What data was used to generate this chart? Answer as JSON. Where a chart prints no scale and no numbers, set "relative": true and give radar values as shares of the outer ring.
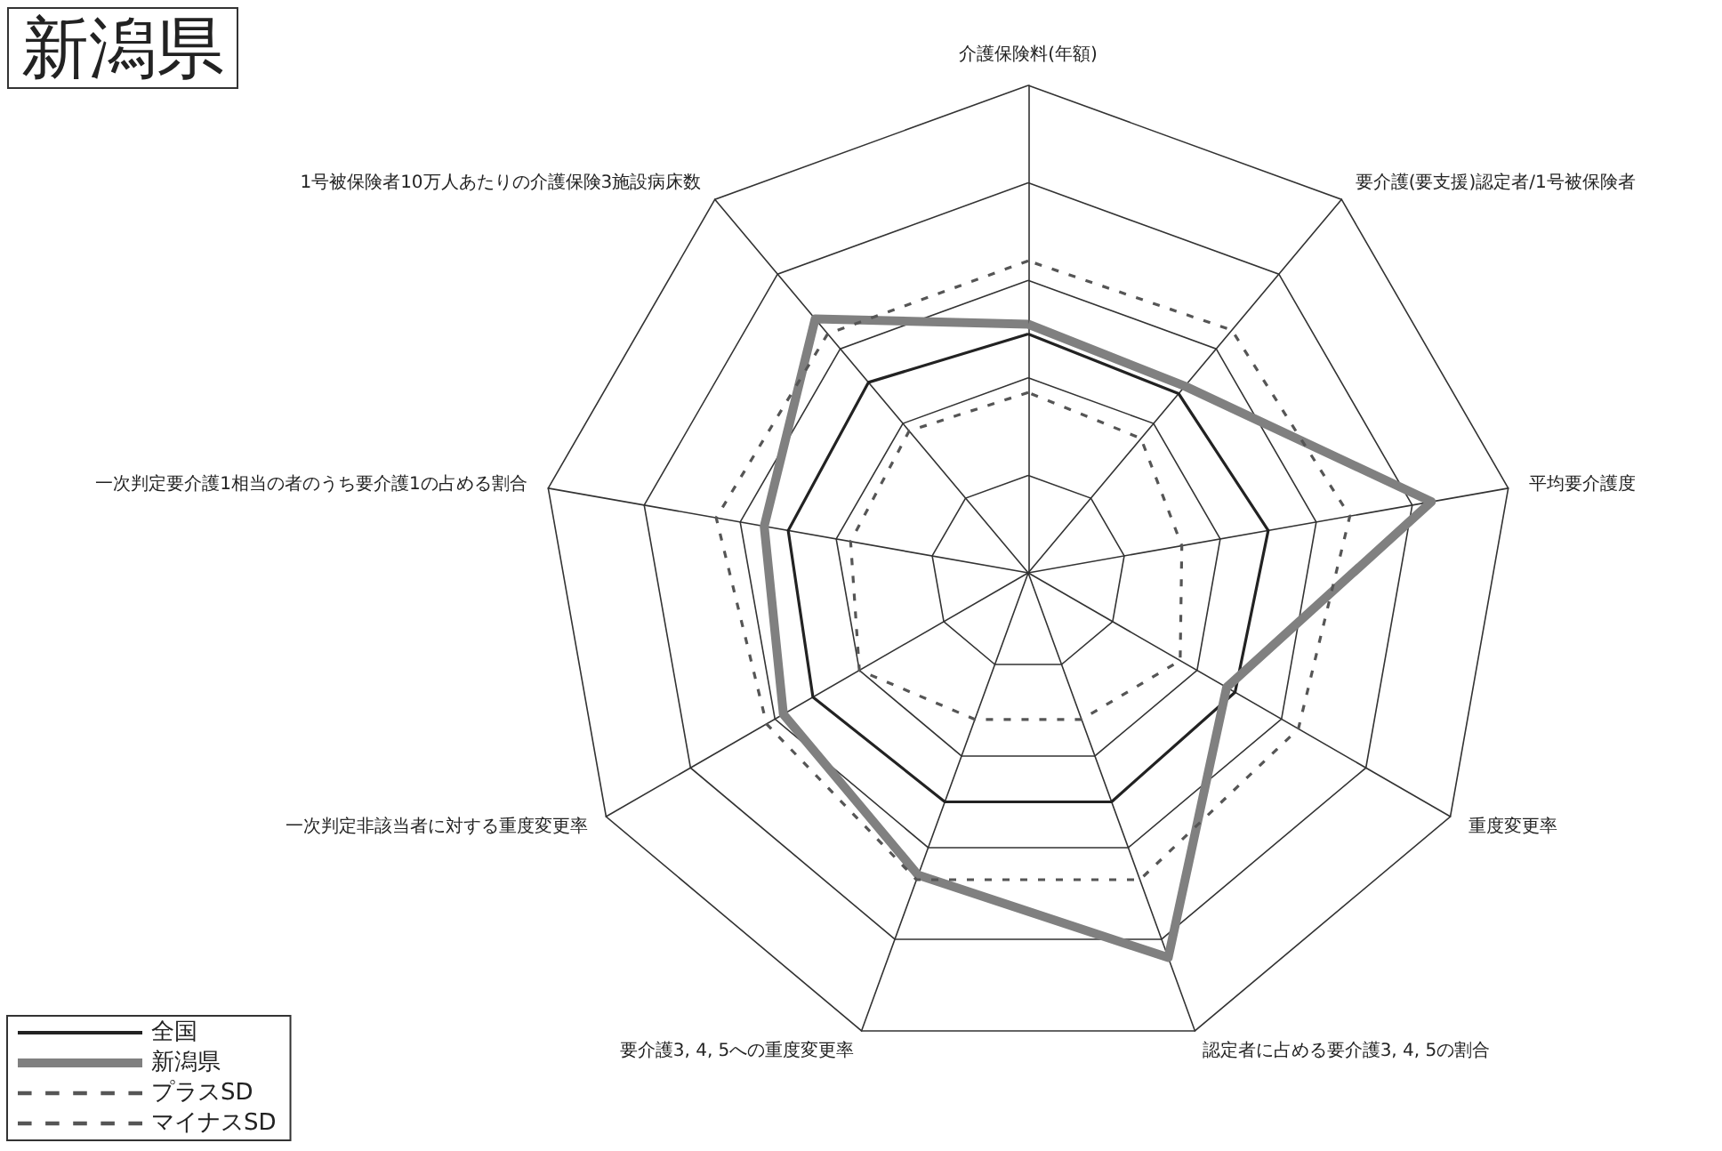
{
  "chart_data": {
    "type": "radar",
    "title": "新潟県",
    "relative": true,
    "legend": "bottom left",
    "marker": "none",
    "grid": true,
    "categories": [
      "介護保険料(年額)",
      "要介護(要支援)認定者/1号被保険者",
      "平均要介護度",
      "重度変更率",
      "認定者に占める要介護3, 4, 5の割合",
      "要介護3, 4, 5への重度変更率",
      "一次判定非該当者に対する重度変更率",
      "一次判定要介護1相当の者のうち要介護1の占める割合",
      "1号被保険者10万人あたりの介護保険3施設病床数"
    ],
    "series": [
      {
        "name": "全国",
        "color": "#222222",
        "line_style": "solid",
        "values": [
          0.49,
          0.48,
          0.5,
          0.49,
          0.5,
          0.5,
          0.51,
          0.5,
          0.51
        ]
      },
      {
        "name": "新潟県",
        "color": "#808080",
        "line_style": "solid",
        "values": [
          0.51,
          0.5,
          0.84,
          0.47,
          0.84,
          0.66,
          0.58,
          0.55,
          0.68
        ]
      },
      {
        "name": "プラスSD",
        "color": "#555555",
        "line_style": "dashed",
        "values": [
          0.64,
          0.65,
          0.67,
          0.64,
          0.67,
          0.67,
          0.62,
          0.65,
          0.64
        ]
      },
      {
        "name": "マイナスSD",
        "color": "#555555",
        "line_style": "dashed",
        "values": [
          0.37,
          0.36,
          0.32,
          0.36,
          0.32,
          0.32,
          0.4,
          0.37,
          0.38
        ]
      }
    ]
  }
}
